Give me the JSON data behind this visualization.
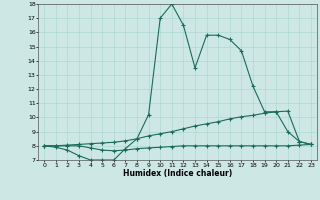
{
  "xlabel": "Humidex (Indice chaleur)",
  "x_ticks": [
    0,
    1,
    2,
    3,
    4,
    5,
    6,
    7,
    8,
    9,
    10,
    11,
    12,
    13,
    14,
    15,
    16,
    17,
    18,
    19,
    20,
    21,
    22,
    23
  ],
  "ylim": [
    7,
    18
  ],
  "xlim": [
    -0.5,
    23.5
  ],
  "y_ticks": [
    7,
    8,
    9,
    10,
    11,
    12,
    13,
    14,
    15,
    16,
    17,
    18
  ],
  "bg_color": "#cde8e4",
  "line_color": "#1a6b5a",
  "grid_color": "#b0d8d0",
  "line1_x": [
    0,
    1,
    2,
    3,
    4,
    5,
    6,
    7,
    8,
    9,
    10,
    11,
    12,
    13,
    14,
    15,
    16,
    17,
    18,
    19,
    20,
    21,
    22,
    23
  ],
  "line1_y": [
    8.0,
    7.9,
    7.7,
    7.3,
    7.0,
    7.0,
    7.0,
    7.8,
    8.5,
    10.2,
    17.0,
    18.0,
    16.5,
    13.5,
    15.8,
    15.8,
    15.5,
    14.7,
    12.2,
    10.4,
    10.4,
    9.0,
    8.3,
    8.1
  ],
  "line2_x": [
    0,
    1,
    2,
    3,
    4,
    5,
    6,
    7,
    8,
    9,
    10,
    11,
    12,
    13,
    14,
    15,
    16,
    17,
    18,
    19,
    20,
    21,
    22,
    23
  ],
  "line2_y": [
    8.0,
    8.0,
    8.05,
    8.1,
    8.15,
    8.2,
    8.25,
    8.35,
    8.5,
    8.7,
    8.85,
    9.0,
    9.2,
    9.4,
    9.55,
    9.7,
    9.9,
    10.05,
    10.15,
    10.3,
    10.4,
    10.45,
    8.3,
    8.1
  ],
  "line3_x": [
    0,
    1,
    2,
    3,
    4,
    5,
    6,
    7,
    8,
    9,
    10,
    11,
    12,
    13,
    14,
    15,
    16,
    17,
    18,
    19,
    20,
    21,
    22,
    23
  ],
  "line3_y": [
    8.0,
    8.0,
    8.0,
    8.0,
    7.85,
    7.7,
    7.65,
    7.7,
    7.8,
    7.85,
    7.9,
    7.95,
    8.0,
    8.0,
    8.0,
    8.0,
    8.0,
    8.0,
    8.0,
    8.0,
    8.0,
    8.0,
    8.05,
    8.1
  ]
}
